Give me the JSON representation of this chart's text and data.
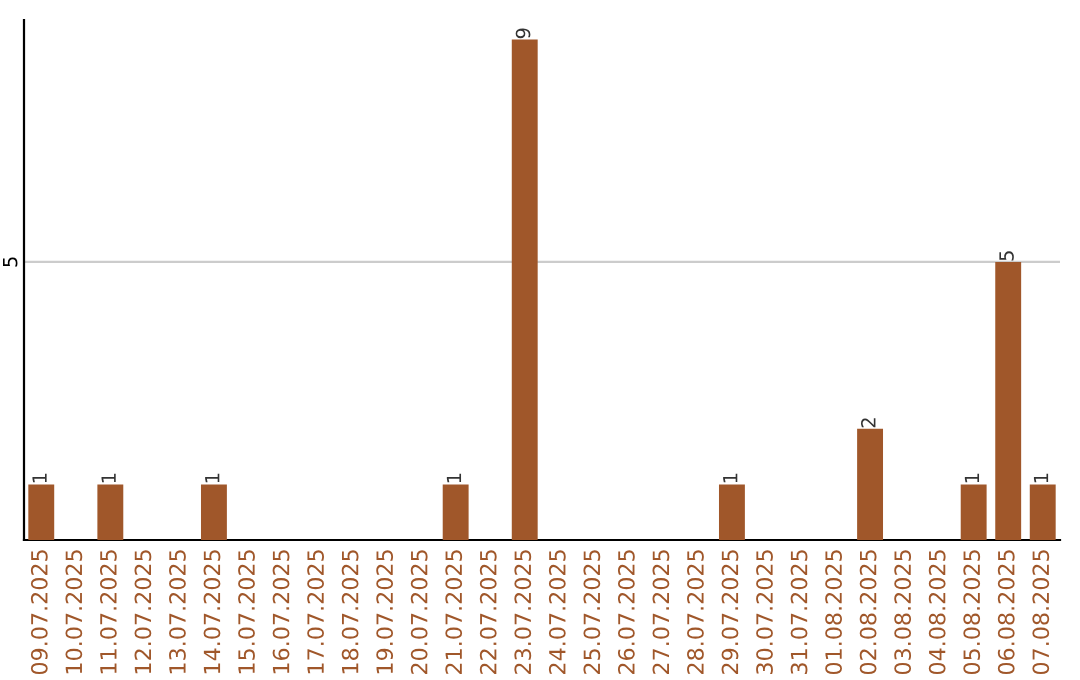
{
  "chart_data": {
    "type": "bar",
    "categories": [
      "09.07.2025",
      "10.07.2025",
      "11.07.2025",
      "12.07.2025",
      "13.07.2025",
      "14.07.2025",
      "15.07.2025",
      "16.07.2025",
      "17.07.2025",
      "18.07.2025",
      "19.07.2025",
      "20.07.2025",
      "21.07.2025",
      "22.07.2025",
      "23.07.2025",
      "24.07.2025",
      "25.07.2025",
      "26.07.2025",
      "27.07.2025",
      "28.07.2025",
      "29.07.2025",
      "30.07.2025",
      "31.07.2025",
      "01.08.2025",
      "02.08.2025",
      "03.08.2025",
      "04.08.2025",
      "05.08.2025",
      "06.08.2025",
      "07.08.2025"
    ],
    "values": [
      1,
      0,
      1,
      0,
      0,
      1,
      0,
      0,
      0,
      0,
      0,
      0,
      1,
      0,
      9,
      0,
      0,
      0,
      0,
      0,
      1,
      0,
      0,
      0,
      2,
      0,
      0,
      1,
      5,
      1
    ],
    "color": "#a0572a",
    "value_labels": [
      "1",
      null,
      "1",
      null,
      null,
      "1",
      null,
      null,
      null,
      null,
      null,
      null,
      "1",
      null,
      "9",
      null,
      null,
      null,
      null,
      null,
      "1",
      null,
      null,
      null,
      "2",
      null,
      null,
      "1",
      "5",
      "1"
    ],
    "ylim": [
      0,
      9.35
    ],
    "yticks": [
      5
    ],
    "grid": "y"
  }
}
